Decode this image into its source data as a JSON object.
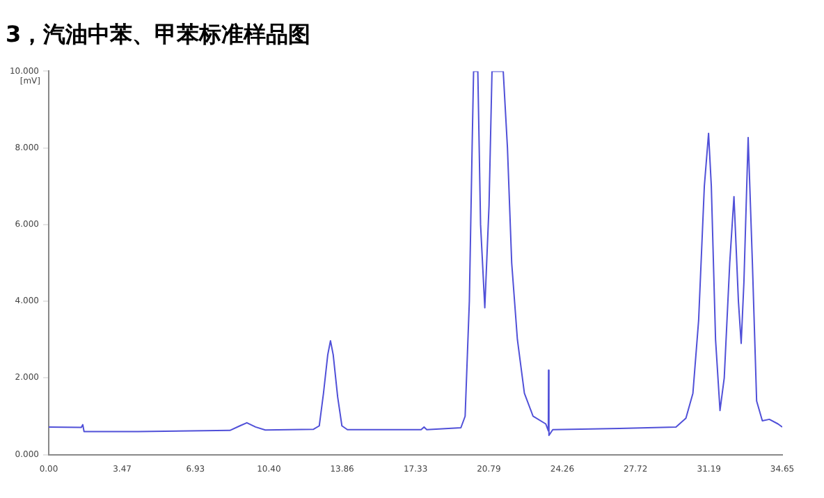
{
  "chart_data": {
    "type": "line",
    "title": "3，汽油中苯、甲苯标准样品图",
    "ylabel": "[mV]",
    "color": "#5050d8",
    "marker": "none",
    "line_style": "solid",
    "grid": false,
    "legend": false,
    "x": [
      0,
      1.54,
      1.61,
      1.67,
      4.21,
      8.56,
      9.03,
      9.36,
      9.77,
      10.23,
      12.51,
      12.78,
      12.98,
      13.18,
      13.31,
      13.44,
      13.65,
      13.85,
      14.11,
      17.59,
      17.73,
      17.86,
      19.47,
      19.67,
      19.87,
      20.0,
      20.07,
      20.27,
      20.4,
      20.6,
      20.8,
      20.94,
      21.47,
      21.67,
      21.87,
      22.14,
      22.47,
      22.88,
      23.48,
      23.6,
      23.61,
      23.63,
      23.81,
      26.96,
      29.63,
      30.1,
      30.43,
      30.7,
      30.97,
      31.17,
      31.3,
      31.5,
      31.71,
      31.91,
      32.17,
      32.37,
      32.58,
      32.71,
      32.84,
      33.04,
      33.24,
      33.44,
      33.71,
      34.04,
      34.45,
      34.65
    ],
    "values": [
      0.72,
      0.71,
      0.78,
      0.6,
      0.6,
      0.63,
      0.75,
      0.83,
      0.72,
      0.64,
      0.66,
      0.75,
      1.6,
      2.6,
      2.97,
      2.6,
      1.5,
      0.75,
      0.65,
      0.65,
      0.72,
      0.65,
      0.7,
      1.0,
      4.0,
      8.0,
      10,
      10,
      6.0,
      3.83,
      6.5,
      10,
      10,
      8.0,
      5.0,
      3.0,
      1.6,
      1.0,
      0.8,
      0.62,
      2.2,
      0.5,
      0.65,
      0.68,
      0.72,
      0.95,
      1.6,
      3.5,
      7.0,
      8.38,
      7.0,
      3.0,
      1.15,
      2.0,
      5.0,
      6.73,
      4.0,
      2.9,
      4.5,
      8.27,
      5.0,
      1.4,
      0.88,
      0.92,
      0.8,
      0.72
    ],
    "xlim": [
      0,
      34.65
    ],
    "xticks": [
      {
        "value": 0,
        "label": "0.00"
      },
      {
        "value": 3.47,
        "label": "3.47"
      },
      {
        "value": 6.93,
        "label": "6.93"
      },
      {
        "value": 10.4,
        "label": "10.40"
      },
      {
        "value": 13.86,
        "label": "13.86"
      },
      {
        "value": 17.33,
        "label": "17.33"
      },
      {
        "value": 20.79,
        "label": "20.79"
      },
      {
        "value": 24.26,
        "label": "24.26"
      },
      {
        "value": 27.72,
        "label": "27.72"
      },
      {
        "value": 31.19,
        "label": "31.19"
      },
      {
        "value": 34.65,
        "label": "34.65"
      }
    ],
    "ylim": [
      0,
      10
    ],
    "yticks": [
      {
        "value": 0,
        "label": "0.000"
      },
      {
        "value": 2,
        "label": "2.000"
      },
      {
        "value": 4,
        "label": "4.000"
      },
      {
        "value": 6,
        "label": "6.000"
      },
      {
        "value": 8,
        "label": "8.000"
      },
      {
        "value": 10,
        "label": "10.000"
      }
    ]
  }
}
